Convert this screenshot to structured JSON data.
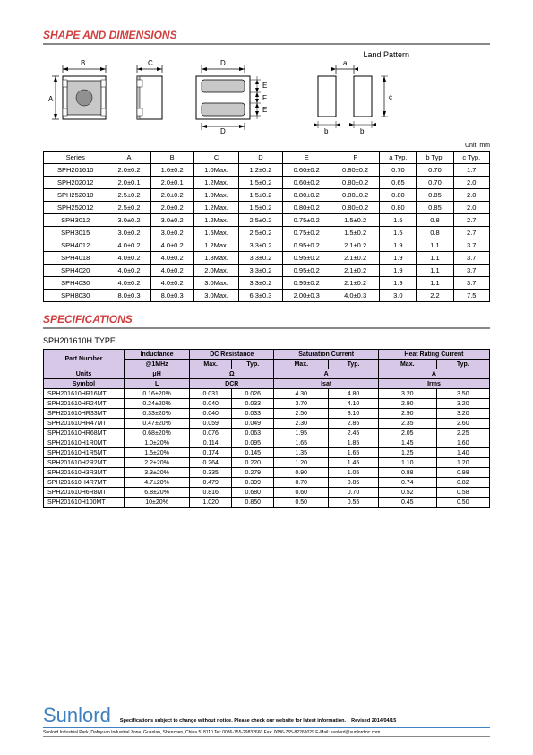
{
  "titles": {
    "shape": "SHAPE AND DIMENSIONS",
    "specs": "SPECIFICATIONS",
    "land_pattern": "Land Pattern",
    "unit": "Unit: mm",
    "spec_type": "SPH201610H TYPE"
  },
  "dim_labels": {
    "A": "A",
    "B": "B",
    "C": "C",
    "D": "D",
    "E": "E",
    "F": "F",
    "a": "a",
    "b": "b",
    "c": "c"
  },
  "dim_table": {
    "headers": [
      "Series",
      "A",
      "B",
      "C",
      "D",
      "E",
      "F",
      "a Typ.",
      "b Typ.",
      "c Typ."
    ],
    "rows": [
      [
        "SPH201610",
        "2.0±0.2",
        "1.6±0.2",
        "1.0Max.",
        "1.2±0.2",
        "0.60±0.2",
        "0.80±0.2",
        "0.70",
        "0.70",
        "1.7"
      ],
      [
        "SPH202012",
        "2.0±0.1",
        "2.0±0.1",
        "1.2Max.",
        "1.5±0.2",
        "0.60±0.2",
        "0.80±0.2",
        "0.65",
        "0.70",
        "2.0"
      ],
      [
        "SPH252010",
        "2.5±0.2",
        "2.0±0.2",
        "1.0Max.",
        "1.5±0.2",
        "0.80±0.2",
        "0.80±0.2",
        "0.80",
        "0.85",
        "2.0"
      ],
      [
        "SPH252012",
        "2.5±0.2",
        "2.0±0.2",
        "1.2Max.",
        "1.5±0.2",
        "0.80±0.2",
        "0.80±0.2",
        "0.80",
        "0.85",
        "2.0"
      ],
      [
        "SPH3012",
        "3.0±0.2",
        "3.0±0.2",
        "1.2Max.",
        "2.5±0.2",
        "0.75±0.2",
        "1.5±0.2",
        "1.5",
        "0.8",
        "2.7"
      ],
      [
        "SPH3015",
        "3.0±0.2",
        "3.0±0.2",
        "1.5Max.",
        "2.5±0.2",
        "0.75±0.2",
        "1.5±0.2",
        "1.5",
        "0.8",
        "2.7"
      ],
      [
        "SPH4012",
        "4.0±0.2",
        "4.0±0.2",
        "1.2Max.",
        "3.3±0.2",
        "0.95±0.2",
        "2.1±0.2",
        "1.9",
        "1.1",
        "3.7"
      ],
      [
        "SPH4018",
        "4.0±0.2",
        "4.0±0.2",
        "1.8Max.",
        "3.3±0.2",
        "0.95±0.2",
        "2.1±0.2",
        "1.9",
        "1.1",
        "3.7"
      ],
      [
        "SPH4020",
        "4.0±0.2",
        "4.0±0.2",
        "2.0Max.",
        "3.3±0.2",
        "0.95±0.2",
        "2.1±0.2",
        "1.9",
        "1.1",
        "3.7"
      ],
      [
        "SPH4030",
        "4.0±0.2",
        "4.0±0.2",
        "3.0Max.",
        "3.3±0.2",
        "0.95±0.2",
        "2.1±0.2",
        "1.9",
        "1.1",
        "3.7"
      ],
      [
        "SPH8030",
        "8.0±0.3",
        "8.0±0.3",
        "3.0Max.",
        "6.3±0.3",
        "2.00±0.3",
        "4.0±0.3",
        "3.0",
        "2.2",
        "7.5"
      ]
    ]
  },
  "spec_table": {
    "top_headers": [
      "Part Number",
      "Inductance",
      "DC Resistance",
      "Saturation Current",
      "Heat Rating Current"
    ],
    "sub_headers": [
      "@1MHz",
      "Max.",
      "Typ.",
      "Max.",
      "Typ.",
      "Max.",
      "Typ."
    ],
    "units_row": [
      "Units",
      "μH",
      "Ω",
      "A",
      "A"
    ],
    "symbol_row": [
      "Symbol",
      "L",
      "DCR",
      "Isat",
      "Irms"
    ],
    "rows": [
      [
        "SPH201610HR16MT",
        "0.16±20%",
        "0.031",
        "0.026",
        "4.30",
        "4.80",
        "3.20",
        "3.50"
      ],
      [
        "SPH201610HR24MT",
        "0.24±20%",
        "0.040",
        "0.033",
        "3.70",
        "4.10",
        "2.90",
        "3.20"
      ],
      [
        "SPH201610HR33MT",
        "0.33±20%",
        "0.040",
        "0.033",
        "2.50",
        "3.10",
        "2.90",
        "3.20"
      ],
      [
        "SPH201610HR47MT",
        "0.47±20%",
        "0.059",
        "0.049",
        "2.30",
        "2.85",
        "2.35",
        "2.60"
      ],
      [
        "SPH201610HR68MT",
        "0.68±20%",
        "0.076",
        "0.063",
        "1.95",
        "2.45",
        "2.05",
        "2.25"
      ],
      [
        "SPH201610H1R0MT",
        "1.0±20%",
        "0.114",
        "0.095",
        "1.65",
        "1.85",
        "1.45",
        "1.60"
      ],
      [
        "SPH201610H1R5MT",
        "1.5±20%",
        "0.174",
        "0.145",
        "1.35",
        "1.65",
        "1.25",
        "1.40"
      ],
      [
        "SPH201610H2R2MT",
        "2.2±20%",
        "0.264",
        "0.220",
        "1.20",
        "1.45",
        "1.10",
        "1.20"
      ],
      [
        "SPH201610H3R3MT",
        "3.3±20%",
        "0.335",
        "0.279",
        "0.90",
        "1.05",
        "0.88",
        "0.98"
      ],
      [
        "SPH201610H4R7MT",
        "4.7±20%",
        "0.479",
        "0.399",
        "0.70",
        "0.85",
        "0.74",
        "0.82"
      ],
      [
        "SPH201610H6R8MT",
        "6.8±20%",
        "0.816",
        "0.680",
        "0.60",
        "0.70",
        "0.52",
        "0.58"
      ],
      [
        "SPH201610H100MT",
        "10±20%",
        "1.020",
        "0.850",
        "0.50",
        "0.55",
        "0.45",
        "0.50"
      ]
    ]
  },
  "footer": {
    "brand": "Sunlord",
    "note": "Specifications subject to change without notice. Please check our website for latest information.",
    "revised": "Revised 2014/04/15",
    "addr": "Sunlord Industrial Park, Dafuyuan Industrial Zone, Guanlan, Shenzhen, China 518110 Tel: 0086-755-29832660 Fax: 0086-755-82269029 E-Mail: sunlord@sunlordinc.com"
  },
  "colors": {
    "title": "#d04040",
    "brand": "#4080c0",
    "spec_hdr_bg": "#d8c8e8",
    "diagram_fill": "#c8c8c8",
    "diagram_dark": "#909090"
  }
}
